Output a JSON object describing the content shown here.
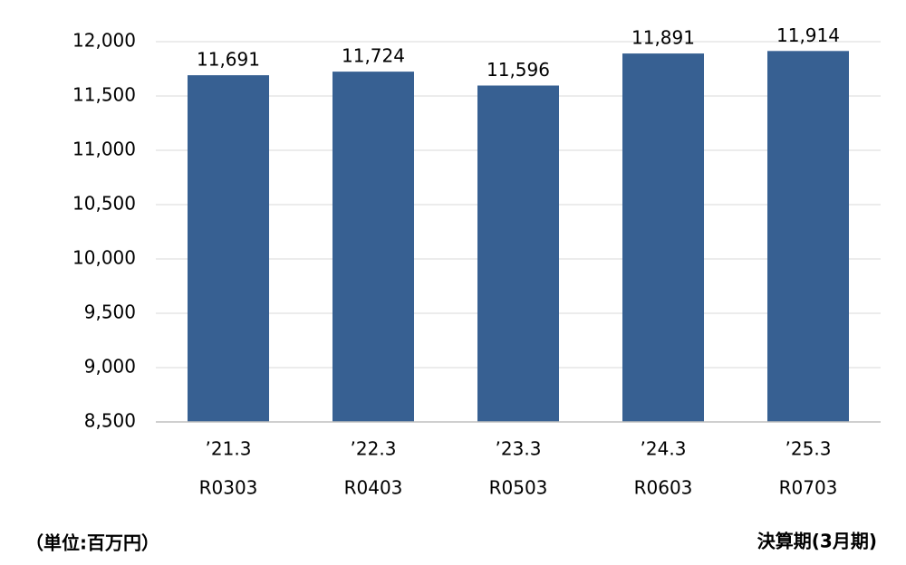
{
  "chart_data": {
    "type": "bar",
    "categories": [
      [
        "’21.3",
        "R0303"
      ],
      [
        "’22.3",
        "R0403"
      ],
      [
        "’23.3",
        "R0503"
      ],
      [
        "’24.3",
        "R0603"
      ],
      [
        "’25.3",
        "R0703"
      ]
    ],
    "values": [
      11691,
      11724,
      11596,
      11891,
      11914
    ],
    "value_labels": [
      "11,691",
      "11,724",
      "11,596",
      "11,891",
      "11,914"
    ],
    "color": "#376092",
    "ylim": [
      8500,
      12000
    ],
    "yticks": [
      {
        "value": 8500,
        "label": "8,500"
      },
      {
        "value": 9000,
        "label": "9,000"
      },
      {
        "value": 9500,
        "label": "9,500"
      },
      {
        "value": 10000,
        "label": "10,000"
      },
      {
        "value": 10500,
        "label": "10,500"
      },
      {
        "value": 11000,
        "label": "11,000"
      },
      {
        "value": 11500,
        "label": "11,500"
      },
      {
        "value": 12000,
        "label": "12,000"
      }
    ],
    "grid": true,
    "annotations": [
      "（単位:百万円）",
      "決算期(3月期)"
    ]
  }
}
